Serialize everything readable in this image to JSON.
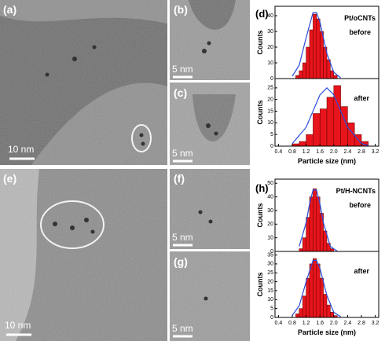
{
  "panels": [
    {
      "label": "(a)",
      "scale": "10 nm"
    },
    {
      "label": "(b)",
      "scale": "5 nm"
    },
    {
      "label": "(c)",
      "scale": "5 nm"
    },
    {
      "label": "(e)",
      "scale": "10 nm"
    },
    {
      "label": "(f)",
      "scale": "5 nm"
    },
    {
      "label": "(g)",
      "scale": "5 nm"
    }
  ],
  "chart_data": [
    {
      "type": "histogram",
      "label": "(d)",
      "annotations": [
        "Pt/oCNTs",
        "before"
      ],
      "ylabel": "Counts",
      "color": "#e8141b",
      "bins": [
        0.9,
        1.0,
        1.1,
        1.2,
        1.3,
        1.4,
        1.5,
        1.6,
        1.7,
        1.8,
        1.9,
        2.0,
        2.1
      ],
      "values": [
        2,
        5,
        10,
        20,
        31,
        41,
        38,
        30,
        20,
        12,
        5,
        2
      ],
      "fit": {
        "color": "#2b4bd8",
        "x": [
          0.8,
          1.0,
          1.2,
          1.4,
          1.5,
          1.6,
          1.8,
          2.0,
          2.2
        ],
        "values": [
          1.5,
          8.5,
          26,
          42,
          42,
          36,
          16,
          4,
          0.5
        ]
      },
      "xlim": [
        0.3,
        3.3
      ],
      "ylim": [
        0,
        46
      ],
      "yticks": [
        0,
        10,
        20,
        30,
        40
      ]
    },
    {
      "type": "histogram",
      "annotations": [
        "after"
      ],
      "ylabel": "Counts",
      "xlabel": "Particle size (nm)",
      "color": "#e8141b",
      "bins": [
        0.8,
        1.0,
        1.2,
        1.4,
        1.6,
        1.8,
        2.0,
        2.2,
        2.4,
        2.6,
        2.8,
        3.0
      ],
      "values": [
        1,
        2,
        5,
        14,
        16,
        21,
        26,
        17,
        10,
        5,
        2
      ],
      "fit": {
        "color": "#2b4bd8",
        "x": [
          0.8,
          1.2,
          1.6,
          1.8,
          2.0,
          2.4,
          2.8,
          3.0
        ],
        "values": [
          1.1,
          8.1,
          22,
          25,
          22,
          8.1,
          1.1,
          0.3
        ]
      },
      "xlim": [
        0.3,
        3.3
      ],
      "ylim": [
        0,
        29
      ],
      "yticks": [
        0,
        5,
        10,
        15,
        20,
        25
      ],
      "xticks": [
        0.4,
        0.8,
        1.2,
        1.6,
        {
          "value": 2,
          "label": "2.0"
        },
        2.4,
        2.8,
        3.2
      ]
    },
    {
      "type": "histogram",
      "label": "(h)",
      "annotations": [
        "Pt/H-NCNTs",
        "before"
      ],
      "ylabel": "Counts",
      "color": "#e8141b",
      "bins": [
        1.0,
        1.1,
        1.2,
        1.3,
        1.4,
        1.5,
        1.6,
        1.7,
        1.8,
        1.9,
        2.0
      ],
      "values": [
        2,
        10,
        25,
        40,
        46,
        40,
        28,
        15,
        6,
        2
      ],
      "fit": {
        "color": "#2b4bd8",
        "x": [
          1.0,
          1.2,
          1.3,
          1.4,
          1.5,
          1.6,
          1.7,
          1.9,
          2.1
        ],
        "values": [
          3.7,
          21,
          35,
          45,
          45,
          35,
          21,
          3.7,
          0.2
        ]
      },
      "xlim": [
        0.3,
        3.3
      ],
      "ylim": [
        0,
        53
      ],
      "yticks": [
        0,
        10,
        20,
        30,
        40,
        50
      ]
    },
    {
      "type": "histogram",
      "annotations": [
        "after"
      ],
      "ylabel": "Counts",
      "xlabel": "Particle size (nm)",
      "color": "#e8141b",
      "bins": [
        0.9,
        1.0,
        1.1,
        1.2,
        1.3,
        1.4,
        1.5,
        1.6,
        1.7,
        1.8,
        1.9,
        2.0,
        2.1
      ],
      "values": [
        2,
        5,
        12,
        22,
        30,
        33,
        30,
        22,
        13,
        7,
        3,
        1
      ],
      "fit": {
        "color": "#2b4bd8",
        "x": [
          0.8,
          1.0,
          1.2,
          1.4,
          1.5,
          1.6,
          1.8,
          2.0,
          2.2
        ],
        "values": [
          1.2,
          6.5,
          20,
          32,
          32,
          27.5,
          12.4,
          2.9,
          0.4
        ]
      },
      "xlim": [
        0.3,
        3.3
      ],
      "ylim": [
        0,
        37
      ],
      "yticks": [
        0,
        5,
        10,
        15,
        20,
        25,
        30,
        35
      ],
      "xticks": [
        0.4,
        0.8,
        1.2,
        1.6,
        {
          "value": 2,
          "label": "2.0"
        },
        2.4,
        2.8,
        3.2
      ]
    }
  ]
}
